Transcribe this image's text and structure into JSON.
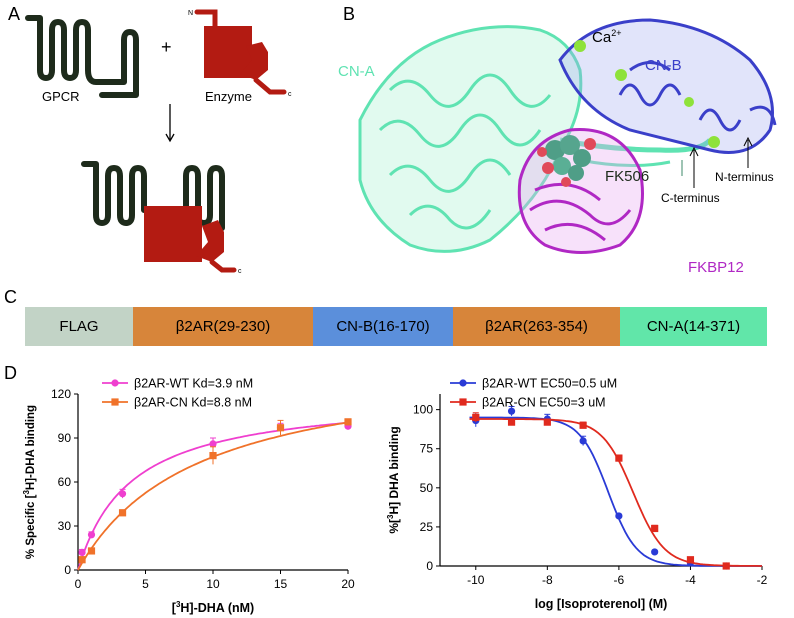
{
  "panels": {
    "a": "A",
    "b": "B",
    "c": "C",
    "d": "D"
  },
  "panel_a": {
    "gpcr_label": "GPCR",
    "plus": "+",
    "enzyme_label": "Enzyme",
    "n_label": "N",
    "c_label": "c",
    "c_label_fusion": "c",
    "colors": {
      "gpcr": "#1e2b1b",
      "enzyme": "#b31b12"
    }
  },
  "panel_b": {
    "cn_a": "CN-A",
    "ca": "Ca",
    "ca_sup": "2+",
    "cn_b": "CN-B",
    "fk506": "FK506",
    "n_terminus": "N-terminus",
    "c_terminus": "C-terminus",
    "fkbp12": "FKBP12",
    "colors": {
      "cn_a": "#5fe3b2",
      "cn_b": "#3a3fc9",
      "fkbp12": "#b028c4",
      "ca": "#8ee23a",
      "fk506": "#e04a5a"
    }
  },
  "construct": {
    "segments": [
      {
        "label": "FLAG",
        "color": "#c2d3c6",
        "flex": 108
      },
      {
        "label": "β2AR(29-230)",
        "color": "#d7853a",
        "flex": 180
      },
      {
        "label": "CN-B(16-170)",
        "color": "#5b8fdb",
        "flex": 140
      },
      {
        "label": "β2AR(263-354)",
        "color": "#d7853a",
        "flex": 167
      },
      {
        "label": "CN-A(14-371)",
        "color": "#61e6a9",
        "flex": 147
      }
    ]
  },
  "chart_data": [
    {
      "type": "line",
      "title": "",
      "xlabel": "[3H]-DHA (nM)",
      "xlabel_parts": [
        "[",
        "3",
        "H]-DHA (nM)"
      ],
      "ylabel": "% Specific [3H]-DHA binding",
      "ylabel_parts": [
        "% Specific [",
        "3",
        "H]-DHA binding"
      ],
      "xlim": [
        0,
        20
      ],
      "ylim": [
        0,
        120
      ],
      "xticks": [
        0,
        5,
        10,
        15,
        20
      ],
      "yticks": [
        0,
        30,
        60,
        90,
        120
      ],
      "grid": false,
      "legend": "top-left",
      "series": [
        {
          "name": "β2AR-WT Kd=3.9 nM",
          "color": "#ef3fcf",
          "marker": "circle",
          "kd": 3.9,
          "bmax": 120,
          "x": [
            0.3,
            1,
            3.3,
            10,
            15,
            20
          ],
          "y": [
            12,
            24,
            52,
            86,
            97,
            98
          ],
          "err": [
            2,
            2,
            3,
            4,
            3,
            2
          ]
        },
        {
          "name": "β2AR-CN Kd=8.8 nM",
          "color": "#f0722a",
          "marker": "square",
          "kd": 8.8,
          "bmax": 145,
          "x": [
            0.3,
            1,
            3.3,
            10,
            15,
            20
          ],
          "y": [
            7,
            13,
            39,
            78,
            97,
            101
          ],
          "err": [
            2,
            2,
            2,
            6,
            5,
            2
          ]
        }
      ]
    },
    {
      "type": "line",
      "title": "",
      "xlabel": "log [Isoproterenol] (M)",
      "ylabel": "%[3H] DHA binding",
      "ylabel_parts": [
        "%[",
        "3",
        "H] DHA binding"
      ],
      "xlim": [
        -11,
        -2
      ],
      "ylim": [
        0,
        110
      ],
      "xticks": [
        -10,
        -8,
        -6,
        -4,
        -2
      ],
      "yticks": [
        0,
        25,
        50,
        75,
        100
      ],
      "grid": false,
      "legend": "top",
      "series": [
        {
          "name": "β2AR-WT EC50=0.5 uM",
          "color": "#2a3bd6",
          "marker": "circle",
          "top": 95,
          "bottom": 0,
          "log_ec50": -6.3,
          "hill": 1.1,
          "x": [
            -10,
            -9,
            -8,
            -7,
            -6,
            -5,
            -4,
            -3
          ],
          "y": [
            93,
            99,
            94,
            80,
            32,
            9,
            2,
            0
          ],
          "err": [
            4,
            3,
            3,
            3,
            1,
            1,
            1,
            1
          ]
        },
        {
          "name": "β2AR-CN EC50=3 uM",
          "color": "#e02a1e",
          "marker": "square",
          "top": 94,
          "bottom": 0,
          "log_ec50": -5.6,
          "hill": 1.0,
          "x": [
            -10,
            -9,
            -8,
            -7,
            -6,
            -5,
            -4,
            -3
          ],
          "y": [
            95,
            92,
            92,
            90,
            69,
            24,
            4,
            0
          ],
          "err": [
            3,
            2,
            2,
            2,
            2,
            2,
            1,
            1
          ]
        }
      ]
    }
  ]
}
